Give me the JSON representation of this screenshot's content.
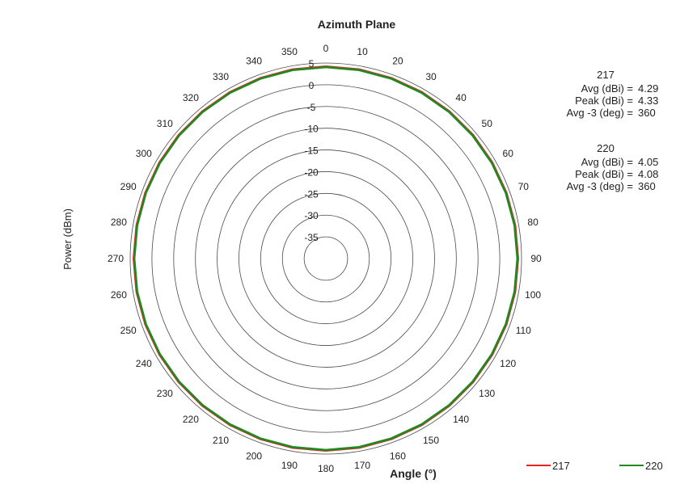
{
  "chart_data": {
    "type": "polar-line",
    "title": "Azimuth Plane",
    "xlabel": "Angle (°)",
    "ylabel": "Power (dBm)",
    "angle_ticks": [
      "0",
      "10",
      "20",
      "30",
      "40",
      "50",
      "60",
      "70",
      "80",
      "90",
      "100",
      "110",
      "120",
      "130",
      "140",
      "150",
      "160",
      "170",
      "180",
      "190",
      "200",
      "210",
      "220",
      "230",
      "240",
      "250",
      "260",
      "270",
      "280",
      "290",
      "300",
      "310",
      "320",
      "330",
      "340",
      "350"
    ],
    "radial_ticks": [
      "5",
      "0",
      "-5",
      "-10",
      "-15",
      "-20",
      "-25",
      "-30",
      "-35"
    ],
    "rlim": [
      -40,
      5
    ],
    "grid": true,
    "legend_position": "bottom-right",
    "series": [
      {
        "name": "217",
        "color": "#e8221f",
        "value": 4.29
      },
      {
        "name": "220",
        "color": "#1f8a1f",
        "value": 4.05
      }
    ]
  },
  "stats": [
    {
      "series": "217",
      "rows": [
        {
          "label": "Avg (dBi) =",
          "value": "4.29"
        },
        {
          "label": "Peak (dBi) =",
          "value": "4.33"
        },
        {
          "label": "Avg -3 (deg) =",
          "value": "360"
        }
      ]
    },
    {
      "series": "220",
      "rows": [
        {
          "label": "Avg (dBi) =",
          "value": "4.05"
        },
        {
          "label": "Peak (dBi) =",
          "value": "4.08"
        },
        {
          "label": "Avg -3 (deg) =",
          "value": "360"
        }
      ]
    }
  ],
  "legend": [
    "217",
    "220"
  ]
}
